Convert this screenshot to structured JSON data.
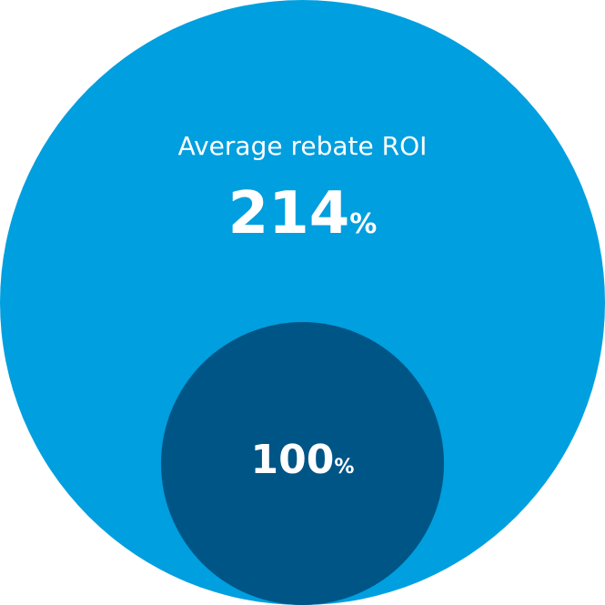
{
  "colors": {
    "outer": "#009fdf",
    "inner": "#005587",
    "text": "#ffffff"
  },
  "outer_circle": {
    "label": "Average rebate ROI",
    "value": "214",
    "unit": "%"
  },
  "inner_circle": {
    "value": "100",
    "unit": "%"
  }
}
